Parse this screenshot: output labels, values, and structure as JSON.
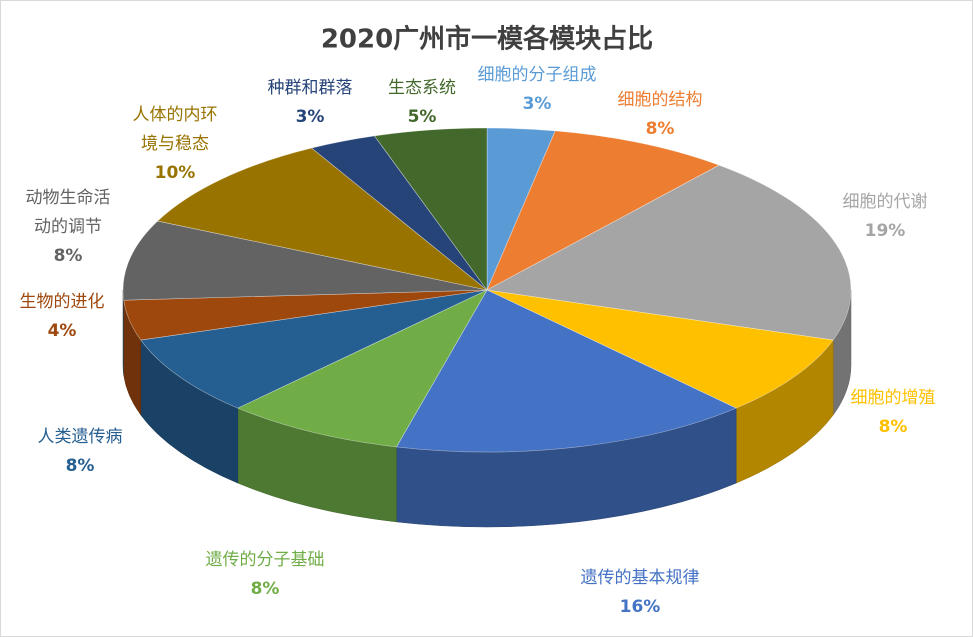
{
  "chart_data": {
    "type": "pie3d",
    "title": "2020广州市一模各模块占比",
    "categories": [
      "细胞的分子组成",
      "细胞的结构",
      "细胞的代谢",
      "细胞的增殖",
      "遗传的基本规律",
      "遗传的分子基础",
      "人类遗传病",
      "生物的进化",
      "动物生命活动的调节",
      "人体的内环境与稳态",
      "种群和群落",
      "生态系统"
    ],
    "values": [
      3,
      8,
      19,
      8,
      16,
      8,
      8,
      4,
      8,
      10,
      3,
      5
    ],
    "value_labels": [
      "3%",
      "8%",
      "19%",
      "8%",
      "16%",
      "8%",
      "8%",
      "4%",
      "8%",
      "10%",
      "3%",
      "5%"
    ],
    "colors": [
      "#5b9bd5",
      "#ed7d31",
      "#a5a5a5",
      "#ffc000",
      "#4472c4",
      "#70ad47",
      "#255e91",
      "#9e480e",
      "#636363",
      "#997300",
      "#264478",
      "#43682b"
    ]
  }
}
